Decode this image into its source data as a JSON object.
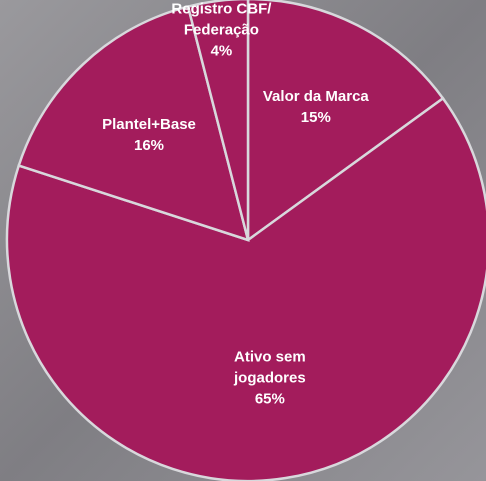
{
  "chart_data": {
    "type": "pie",
    "categories": [
      "Valor da Marca",
      "Ativo sem jogadores",
      "Plantel+Base",
      "Registro CBF/ Federação"
    ],
    "values": [
      15,
      65,
      16,
      4
    ],
    "value_labels": [
      "15%",
      "65%",
      "16%",
      "4%"
    ],
    "color": "#a31c5c"
  }
}
